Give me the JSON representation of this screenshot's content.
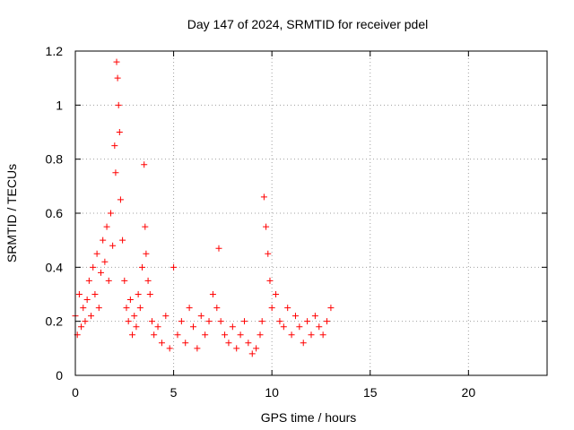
{
  "chart_data": {
    "type": "scatter",
    "title": "Day 147 of 2024, SRMTID for receiver pdel",
    "xlabel": "GPS time / hours",
    "ylabel": "SRMTID / TECUs",
    "xlim": [
      0,
      24
    ],
    "ylim": [
      0,
      1.2
    ],
    "xticks": [
      0,
      5,
      10,
      15,
      20
    ],
    "xtick_labels": [
      "0",
      "5",
      "10",
      "15",
      "20"
    ],
    "yticks": [
      0,
      0.2,
      0.4,
      0.6,
      0.8,
      1.0,
      1.2
    ],
    "ytick_labels": [
      "0",
      "0.2",
      "0.4",
      "0.6",
      "0.8",
      "1",
      "1.2"
    ],
    "grid": true,
    "marker": "+",
    "color": "#ff0000",
    "series": [
      {
        "name": "SRMTID",
        "x": [
          0.0,
          0.1,
          0.2,
          0.3,
          0.4,
          0.5,
          0.6,
          0.7,
          0.8,
          0.9,
          1.0,
          1.1,
          1.2,
          1.3,
          1.4,
          1.5,
          1.6,
          1.7,
          1.8,
          1.9,
          2.0,
          2.05,
          2.1,
          2.15,
          2.2,
          2.25,
          2.3,
          2.4,
          2.5,
          2.6,
          2.7,
          2.8,
          2.9,
          3.0,
          3.1,
          3.2,
          3.3,
          3.4,
          3.5,
          3.55,
          3.6,
          3.7,
          3.8,
          3.9,
          4.0,
          4.2,
          4.4,
          4.6,
          4.8,
          5.0,
          5.2,
          5.4,
          5.6,
          5.8,
          6.0,
          6.2,
          6.4,
          6.6,
          6.8,
          7.0,
          7.2,
          7.3,
          7.4,
          7.6,
          7.8,
          8.0,
          8.2,
          8.4,
          8.6,
          8.8,
          9.0,
          9.2,
          9.4,
          9.5,
          9.6,
          9.7,
          9.8,
          9.9,
          10.0,
          10.2,
          10.4,
          10.6,
          10.8,
          11.0,
          11.2,
          11.4,
          11.6,
          11.8,
          12.0,
          12.2,
          12.4,
          12.6,
          12.8,
          13.0
        ],
        "y": [
          0.22,
          0.15,
          0.3,
          0.18,
          0.25,
          0.2,
          0.28,
          0.35,
          0.22,
          0.4,
          0.3,
          0.45,
          0.25,
          0.38,
          0.5,
          0.42,
          0.55,
          0.35,
          0.6,
          0.48,
          0.85,
          0.75,
          1.16,
          1.1,
          1.0,
          0.9,
          0.65,
          0.5,
          0.35,
          0.25,
          0.2,
          0.28,
          0.15,
          0.22,
          0.18,
          0.3,
          0.25,
          0.4,
          0.78,
          0.55,
          0.45,
          0.35,
          0.3,
          0.2,
          0.15,
          0.18,
          0.12,
          0.22,
          0.1,
          0.4,
          0.15,
          0.2,
          0.12,
          0.25,
          0.18,
          0.1,
          0.22,
          0.15,
          0.2,
          0.3,
          0.25,
          0.47,
          0.2,
          0.15,
          0.12,
          0.18,
          0.1,
          0.15,
          0.2,
          0.12,
          0.08,
          0.1,
          0.15,
          0.2,
          0.66,
          0.55,
          0.45,
          0.35,
          0.25,
          0.3,
          0.2,
          0.18,
          0.25,
          0.15,
          0.22,
          0.18,
          0.12,
          0.2,
          0.15,
          0.22,
          0.18,
          0.15,
          0.2,
          0.25
        ]
      }
    ]
  }
}
